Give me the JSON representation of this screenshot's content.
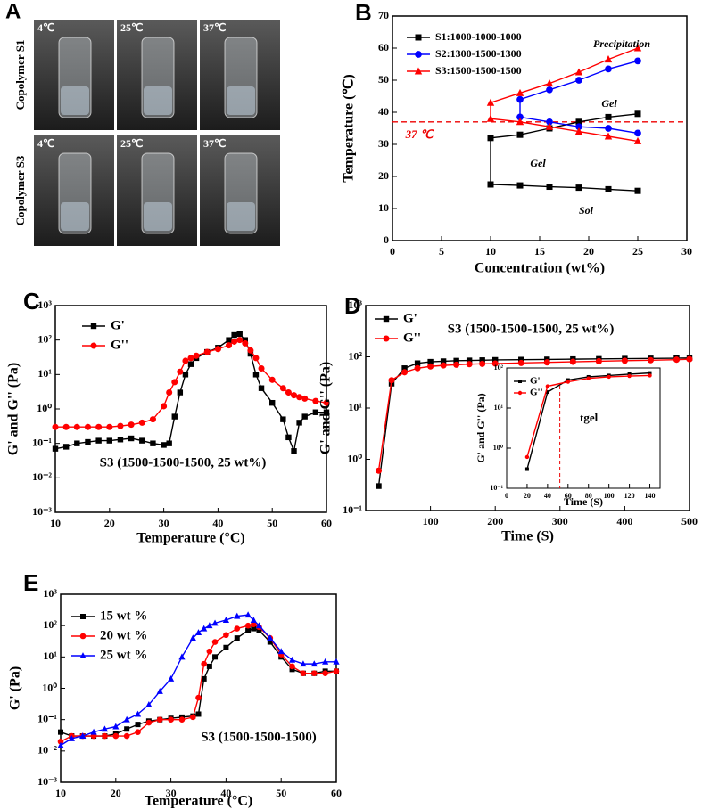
{
  "panel_a": {
    "label": "A",
    "rows": [
      "Copolymer S1",
      "Copolymer S3"
    ],
    "temps": [
      [
        "4℃",
        "25℃",
        "37℃"
      ],
      [
        "4℃",
        "25℃",
        "37℃"
      ]
    ]
  },
  "chart_data": [
    {
      "type": "line",
      "panel": "B",
      "x_label": "Concentration (wt%)",
      "y_label": "Temperature (℃)",
      "xlim": [
        0,
        30
      ],
      "xticks": [
        0,
        5,
        10,
        15,
        20,
        25,
        30
      ],
      "ylim": [
        0,
        70
      ],
      "yticks": [
        0,
        10,
        20,
        30,
        40,
        50,
        60,
        70
      ],
      "legend": "upper left",
      "series": [
        {
          "name": "S1:1000-1000-1000",
          "color": "#000000",
          "marker": "square",
          "x": [
            25,
            22,
            19,
            16,
            13,
            10,
            10,
            13,
            16,
            19,
            22,
            25
          ],
          "values": [
            39.5,
            38.5,
            37,
            35,
            33,
            32,
            17.5,
            17.2,
            16.8,
            16.5,
            16,
            15.5
          ]
        },
        {
          "name": "S2:1300-1500-1300",
          "color": "#0000ff",
          "marker": "circle",
          "x": [
            25,
            22,
            19,
            16,
            13,
            13,
            16,
            19,
            22,
            25
          ],
          "values": [
            56,
            53.5,
            50,
            47,
            44,
            38.5,
            37,
            35.5,
            35,
            33.5
          ]
        },
        {
          "name": "S3:1500-1500-1500",
          "color": "#ff0000",
          "marker": "triangle",
          "x": [
            25,
            22,
            19,
            16,
            13,
            10,
            10,
            13,
            16,
            19,
            22,
            25
          ],
          "values": [
            60,
            56.5,
            52.5,
            49,
            46,
            43,
            38,
            37,
            35.5,
            34,
            32.5,
            31
          ]
        }
      ],
      "ref_line": {
        "value": 37,
        "label": "37 ℃"
      },
      "annotations": [
        "Precipitation",
        "Gel",
        "Gel",
        "Sol"
      ]
    },
    {
      "type": "line",
      "panel": "C",
      "x_label": "Temperature (°C)",
      "y_label": "G' and G'' (Pa)",
      "log_y": true,
      "xlim": [
        10,
        60
      ],
      "xticks": [
        10,
        20,
        30,
        40,
        50,
        60
      ],
      "ylim": [
        0.001,
        1000
      ],
      "yticks": [
        {
          "value": 0.001,
          "label": "10⁻³"
        },
        {
          "value": 0.01,
          "label": "10⁻²"
        },
        {
          "value": 0.1,
          "label": "10⁻¹"
        },
        {
          "value": 1,
          "label": "10⁰"
        },
        {
          "value": 10,
          "label": "10¹"
        },
        {
          "value": 100,
          "label": "10²"
        },
        {
          "value": 1000,
          "label": "10³"
        }
      ],
      "legend": "upper left",
      "x": [
        10,
        12,
        14,
        16,
        18,
        20,
        22,
        24,
        26,
        28,
        30,
        31,
        32,
        33,
        34,
        35,
        36,
        38,
        40,
        42,
        43,
        44,
        45,
        46,
        47,
        48,
        50,
        52,
        53,
        54,
        55,
        56,
        58,
        60
      ],
      "series": [
        {
          "name": "G'",
          "color": "#000000",
          "marker": "square",
          "values": [
            0.07,
            0.08,
            0.1,
            0.11,
            0.12,
            0.12,
            0.13,
            0.14,
            0.12,
            0.1,
            0.09,
            0.1,
            0.6,
            3,
            10,
            20,
            30,
            45,
            60,
            100,
            140,
            150,
            100,
            40,
            10,
            4,
            1.5,
            0.5,
            0.15,
            0.06,
            0.4,
            0.6,
            0.8,
            0.8
          ]
        },
        {
          "name": "G''",
          "color": "#ff0000",
          "marker": "circle",
          "values": [
            0.3,
            0.3,
            0.3,
            0.3,
            0.3,
            0.3,
            0.32,
            0.35,
            0.4,
            0.5,
            1.2,
            3,
            6,
            12,
            25,
            30,
            35,
            45,
            55,
            70,
            90,
            100,
            80,
            50,
            30,
            15,
            7,
            4,
            3,
            2.5,
            2.2,
            2,
            1.7,
            1.5
          ]
        }
      ],
      "annotations": [
        "S3 (1500-1500-1500, 25 wt%)"
      ]
    },
    {
      "type": "line",
      "panel": "D",
      "x_label": "Time (S)",
      "y_label": "G' and G'' (Pa)",
      "log_y": true,
      "xlim": [
        0,
        500
      ],
      "xticks": [
        100,
        200,
        300,
        400,
        500
      ],
      "ylim": [
        0.1,
        1000
      ],
      "yticks": [
        {
          "value": 0.1,
          "label": "10⁻¹"
        },
        {
          "value": 1,
          "label": "10⁰"
        },
        {
          "value": 10,
          "label": "10¹"
        },
        {
          "value": 100,
          "label": "10²"
        },
        {
          "value": 1000,
          "label": "10³"
        }
      ],
      "legend": "upper left",
      "x": [
        20,
        40,
        60,
        80,
        100,
        120,
        140,
        160,
        180,
        200,
        240,
        280,
        320,
        360,
        400,
        440,
        480,
        500
      ],
      "series": [
        {
          "name": "G'",
          "color": "#000000",
          "marker": "square",
          "values": [
            0.3,
            30,
            60,
            75,
            80,
            82,
            84,
            85,
            86,
            87,
            88,
            89,
            90,
            91,
            92,
            93,
            94,
            95
          ]
        },
        {
          "name": "G''",
          "color": "#ff0000",
          "marker": "circle",
          "values": [
            0.6,
            35,
            50,
            60,
            65,
            68,
            70,
            72,
            73,
            74,
            76,
            78,
            80,
            82,
            84,
            86,
            88,
            90
          ]
        }
      ],
      "annotations": [
        "S3 (1500-1500-1500, 25 wt%)"
      ]
    },
    {
      "type": "line",
      "x_label": "Time (S)",
      "y_label": "G' and G'' (Pa)",
      "log_y": true,
      "xlim": [
        0,
        150
      ],
      "xticks": [
        0,
        20,
        40,
        60,
        80,
        100,
        120,
        140
      ],
      "ylim": [
        0.1,
        100
      ],
      "yticks": [
        {
          "value": 0.1,
          "label": "10⁻¹"
        },
        {
          "value": 1,
          "label": "10⁰"
        },
        {
          "value": 10,
          "label": "10¹"
        },
        {
          "value": 100,
          "label": "10²"
        }
      ],
      "legend": "upper left",
      "x": [
        20,
        40,
        60,
        80,
        100,
        120,
        140
      ],
      "series": [
        {
          "name": "G'",
          "color": "#000000",
          "marker": "square",
          "values": [
            0.3,
            25,
            50,
            60,
            65,
            70,
            75
          ]
        },
        {
          "name": "G''",
          "color": "#ff0000",
          "marker": "circle",
          "values": [
            0.6,
            35,
            45,
            55,
            60,
            63,
            65
          ]
        }
      ],
      "vline": {
        "value": 52,
        "label": "tgel"
      }
    },
    {
      "type": "line",
      "panel": "E",
      "x_label": "Temperature (°C)",
      "y_label": "G' (Pa)",
      "log_y": true,
      "xlim": [
        10,
        60
      ],
      "xticks": [
        10,
        20,
        30,
        40,
        50,
        60
      ],
      "ylim": [
        0.001,
        1000
      ],
      "yticks": [
        {
          "value": 0.001,
          "label": "10⁻³"
        },
        {
          "value": 0.01,
          "label": "10⁻²"
        },
        {
          "value": 0.1,
          "label": "10⁻¹"
        },
        {
          "value": 1,
          "label": "10⁰"
        },
        {
          "value": 10,
          "label": "10¹"
        },
        {
          "value": 100,
          "label": "10²"
        },
        {
          "value": 1000,
          "label": "10³"
        }
      ],
      "legend": "upper left",
      "x": [
        10,
        12,
        14,
        16,
        18,
        20,
        22,
        24,
        26,
        28,
        30,
        32,
        34,
        35,
        36,
        37,
        38,
        40,
        42,
        44,
        45,
        46,
        48,
        50,
        52,
        54,
        56,
        58,
        60
      ],
      "series": [
        {
          "name": "15 wt %",
          "color": "#000000",
          "marker": "square",
          "values": [
            0.04,
            0.03,
            0.03,
            0.03,
            0.03,
            0.035,
            0.05,
            0.07,
            0.09,
            0.1,
            0.11,
            0.12,
            0.13,
            0.15,
            2,
            5,
            10,
            20,
            40,
            70,
            80,
            70,
            30,
            10,
            4,
            3,
            3,
            3.5,
            3.5
          ]
        },
        {
          "name": "20 wt %",
          "color": "#ff0000",
          "marker": "circle",
          "values": [
            0.02,
            0.03,
            0.03,
            0.03,
            0.03,
            0.03,
            0.03,
            0.04,
            0.08,
            0.1,
            0.1,
            0.1,
            0.12,
            0.5,
            6,
            15,
            30,
            50,
            80,
            100,
            110,
            90,
            40,
            12,
            5,
            3,
            3,
            3,
            3.5
          ]
        },
        {
          "name": "25 wt %",
          "color": "#0000ff",
          "marker": "triangle",
          "values": [
            0.015,
            0.025,
            0.03,
            0.04,
            0.05,
            0.06,
            0.1,
            0.15,
            0.3,
            0.8,
            2,
            10,
            40,
            60,
            80,
            100,
            120,
            150,
            200,
            220,
            150,
            100,
            40,
            15,
            8,
            6,
            6,
            7,
            7
          ]
        }
      ],
      "annotations": [
        "S3 (1500-1500-1500)"
      ]
    }
  ]
}
